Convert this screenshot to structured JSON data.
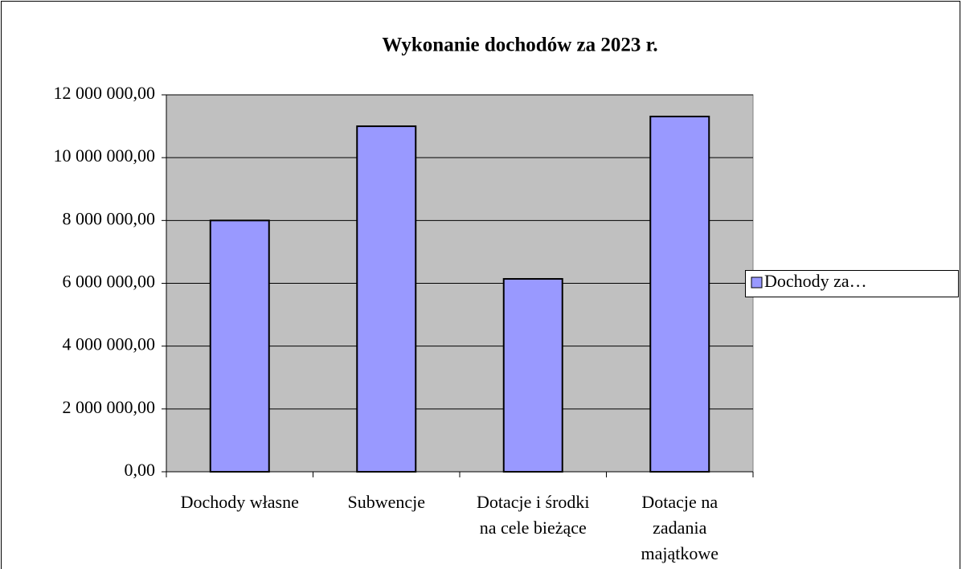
{
  "chart_data": {
    "type": "bar",
    "title": "Wykonanie dochodów za 2023 r.",
    "categories": [
      "Dochody własne",
      "Subwencje",
      "Dotacje i środki na cele bieżące",
      "Dotacje na zadania majątkowe"
    ],
    "series": [
      {
        "name": "Dochody za…",
        "color": "#9999ff",
        "values": [
          8000000,
          11000000,
          6140000,
          11310000
        ]
      }
    ],
    "ylim": [
      0,
      12000000
    ],
    "yticks": [
      {
        "value": 0,
        "label": "0,00"
      },
      {
        "value": 2000000,
        "label": "2 000 000,00"
      },
      {
        "value": 4000000,
        "label": "4 000 000,00"
      },
      {
        "value": 6000000,
        "label": "6 000 000,00"
      },
      {
        "value": 8000000,
        "label": "8 000 000,00"
      },
      {
        "value": 10000000,
        "label": "10 000 000,00"
      },
      {
        "value": 12000000,
        "label": "12 000 000,00"
      }
    ],
    "grid": true,
    "legend": "right"
  }
}
